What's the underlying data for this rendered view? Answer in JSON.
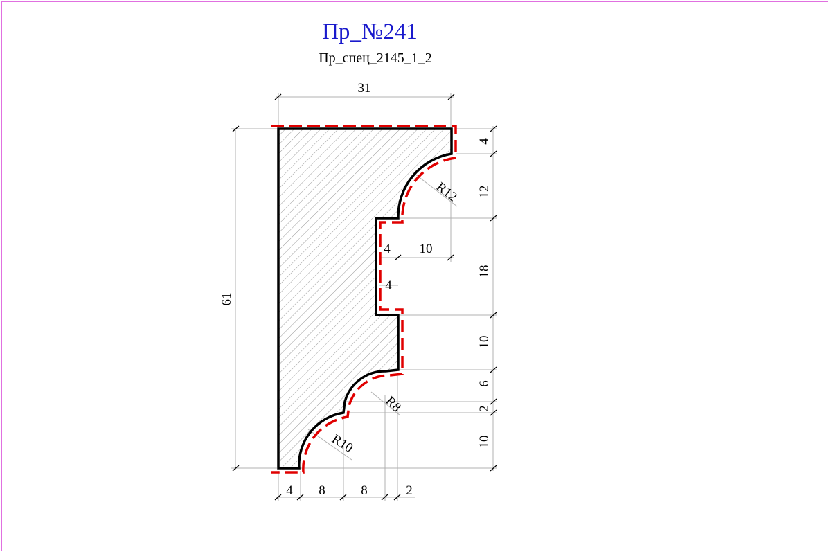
{
  "header": {
    "title": "Пр_№241",
    "subtitle": "Пр_спец_2145_1_2"
  },
  "colors": {
    "title": "#1a1acc",
    "profile_outline": "#000000",
    "cut_line": "#e00000",
    "hatch": "#9a9a9a",
    "dimension_lines": "#b0b0b0",
    "frame": "#e070e0"
  },
  "dimensions": {
    "width_total": "31",
    "height_total": "61",
    "right": [
      "4",
      "12",
      "18",
      "10",
      "6",
      "2",
      "10"
    ],
    "bottom": [
      "4",
      "8",
      "8",
      "2"
    ],
    "inner_offset_top": "4",
    "inner_width": "10",
    "inner_offset_mid": "4",
    "radii": [
      "R12",
      "R8",
      "R10"
    ]
  }
}
